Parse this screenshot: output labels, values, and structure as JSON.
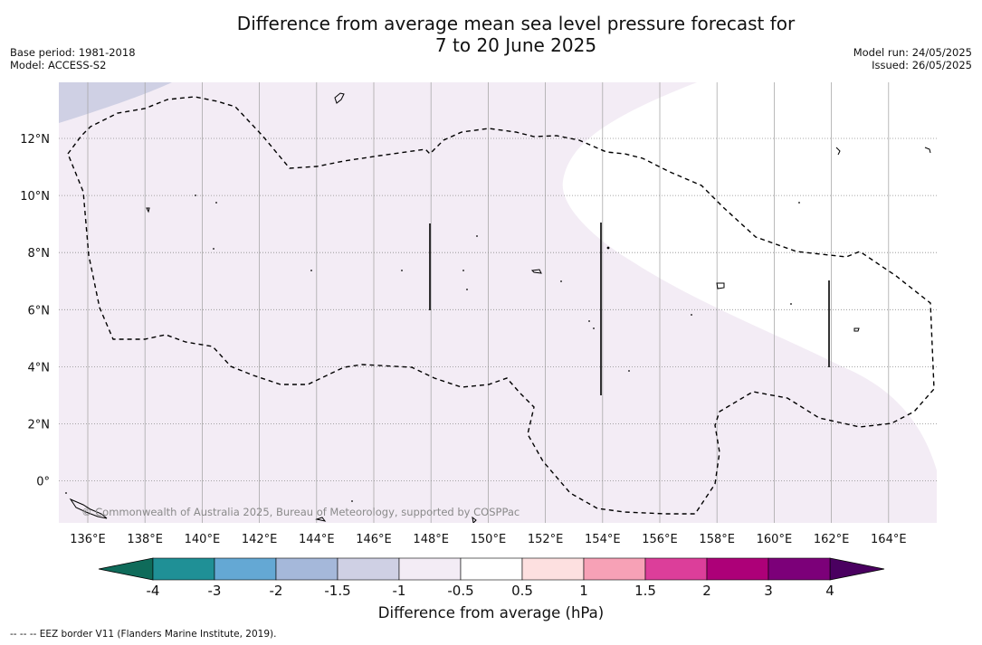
{
  "title": {
    "line1": "Difference from average mean sea level pressure forecast for",
    "line2": "7 to 20 June 2025"
  },
  "meta": {
    "base_period": "Base period: 1981-2018",
    "model": "Model: ACCESS-S2",
    "model_run": "Model run: 24/05/2025",
    "issued": "Issued: 26/05/2025"
  },
  "map": {
    "lon_ticks": [
      "136°E",
      "138°E",
      "140°E",
      "142°E",
      "144°E",
      "146°E",
      "148°E",
      "150°E",
      "152°E",
      "154°E",
      "156°E",
      "158°E",
      "160°E",
      "162°E",
      "164°E"
    ],
    "lat_ticks": [
      "12°N",
      "10°N",
      "8°N",
      "6°N",
      "4°N",
      "2°N",
      "0°"
    ],
    "credit": "© Commonwealth of Australia 2025, Bureau of Meteorology, supported by COSPPac",
    "fill_colors": {
      "band_-1.5_-1": "#cfd0e4",
      "band_-1_-0.5": "#f3ecf5",
      "band_-0.5_0.5": "#ffffff"
    }
  },
  "colorbar": {
    "label": "Difference from average (hPa)",
    "ticks": [
      "-4",
      "-3",
      "-2",
      "-1.5",
      "-1",
      "-0.5",
      "0.5",
      "1",
      "1.5",
      "2",
      "3",
      "4"
    ],
    "low_extend_color": "#0f6b5a",
    "high_extend_color": "#4a0060",
    "colors": [
      "#1f9096",
      "#64a8d4",
      "#a5b8da",
      "#cfd0e4",
      "#f3ecf5",
      "#ffffff",
      "#fde0e0",
      "#f7a1b6",
      "#dc3e9a",
      "#ad0078",
      "#7c0079"
    ]
  },
  "footnote": "--  --  -- EEZ border V11 (Flanders Marine Institute, 2019)."
}
